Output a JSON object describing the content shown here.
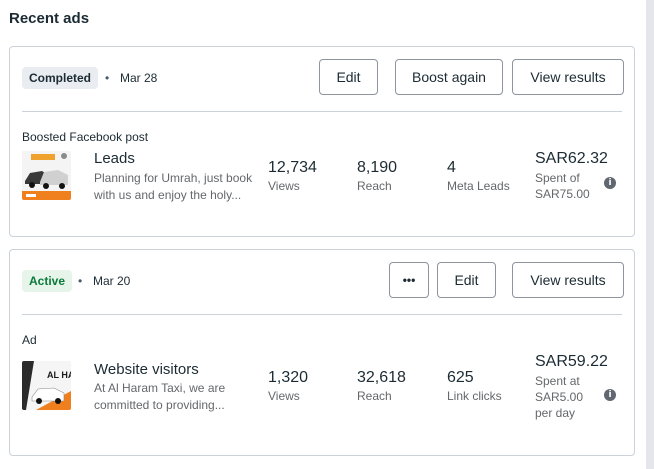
{
  "section_title": "Recent ads",
  "ads": [
    {
      "status": "Completed",
      "date": "Mar 28",
      "buttons": {
        "edit": "Edit",
        "boost": "Boost again",
        "results": "View results"
      },
      "post_type": "Boosted Facebook post",
      "title": "Leads",
      "description_line1": "Planning for Umrah, just book",
      "description_line2": "with us and enjoy the holy...",
      "metrics": [
        {
          "value": "12,734",
          "label": "Views"
        },
        {
          "value": "8,190",
          "label": "Reach"
        },
        {
          "value": "4",
          "label": "Meta Leads"
        }
      ],
      "spend": "SAR62.32",
      "spend_line1": "Spent of",
      "spend_line2": "SAR75.00"
    },
    {
      "status": "Active",
      "date": "Mar 20",
      "buttons": {
        "more": "•••",
        "edit": "Edit",
        "results": "View results"
      },
      "post_type": "Ad",
      "title": "Website visitors",
      "description_line1": "At Al Haram Taxi, we are",
      "description_line2": "committed to providing...",
      "thumb_text": "AL HA",
      "metrics": [
        {
          "value": "1,320",
          "label": "Views"
        },
        {
          "value": "32,618",
          "label": "Reach"
        },
        {
          "value": "625",
          "label": "Link clicks"
        }
      ],
      "spend": "SAR59.22",
      "spend_line1": "Spent at",
      "spend_line2": "SAR5.00",
      "spend_line3": "per day"
    }
  ],
  "colors": {
    "active_badge": "#0b7a3b",
    "border": "#cbd2d9",
    "accent_orange": "#f07f1e"
  }
}
